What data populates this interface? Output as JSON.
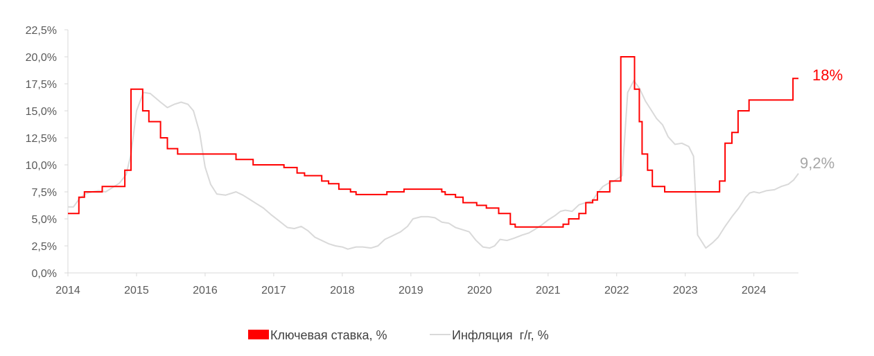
{
  "chart_data": {
    "type": "line",
    "title": "",
    "xlabel": "",
    "ylabel": "",
    "x_ticks": [
      "2014",
      "2015",
      "2016",
      "2017",
      "2018",
      "2019",
      "2020",
      "2021",
      "2022",
      "2023",
      "2024"
    ],
    "y_ticks": [
      "0,0%",
      "2,5%",
      "5,0%",
      "7,5%",
      "10,0%",
      "12,5%",
      "15,0%",
      "17,5%",
      "20,0%",
      "22,5%"
    ],
    "xlim": [
      2014.0,
      2024.65
    ],
    "ylim": [
      0,
      22.5
    ],
    "grid": false,
    "legend_position": "bottom",
    "colors": {
      "rate": "#ff0000",
      "inflation": "#d9d9d9",
      "axis": "#d9d9d9"
    },
    "series": [
      {
        "name": "Ключевая ставка, %",
        "style": "step",
        "points": [
          [
            2014.0,
            5.5
          ],
          [
            2014.16,
            7.0
          ],
          [
            2014.24,
            7.5
          ],
          [
            2014.5,
            8.0
          ],
          [
            2014.83,
            9.5
          ],
          [
            2014.92,
            17.0
          ],
          [
            2015.09,
            15.0
          ],
          [
            2015.18,
            14.0
          ],
          [
            2015.35,
            12.5
          ],
          [
            2015.45,
            11.5
          ],
          [
            2015.6,
            11.0
          ],
          [
            2016.45,
            10.5
          ],
          [
            2016.7,
            10.0
          ],
          [
            2017.15,
            9.75
          ],
          [
            2017.34,
            9.25
          ],
          [
            2017.45,
            9.0
          ],
          [
            2017.7,
            8.5
          ],
          [
            2017.8,
            8.25
          ],
          [
            2017.95,
            7.75
          ],
          [
            2018.12,
            7.5
          ],
          [
            2018.2,
            7.25
          ],
          [
            2018.65,
            7.5
          ],
          [
            2018.9,
            7.75
          ],
          [
            2019.45,
            7.5
          ],
          [
            2019.5,
            7.25
          ],
          [
            2019.65,
            7.0
          ],
          [
            2019.76,
            6.5
          ],
          [
            2019.96,
            6.25
          ],
          [
            2020.1,
            6.0
          ],
          [
            2020.28,
            5.5
          ],
          [
            2020.45,
            4.5
          ],
          [
            2020.52,
            4.25
          ],
          [
            2021.22,
            4.5
          ],
          [
            2021.3,
            5.0
          ],
          [
            2021.45,
            5.5
          ],
          [
            2021.55,
            6.5
          ],
          [
            2021.65,
            6.75
          ],
          [
            2021.72,
            7.5
          ],
          [
            2021.9,
            8.5
          ],
          [
            2021.98,
            8.5
          ],
          [
            2022.06,
            20.0
          ],
          [
            2022.26,
            17.0
          ],
          [
            2022.33,
            14.0
          ],
          [
            2022.37,
            11.0
          ],
          [
            2022.45,
            9.5
          ],
          [
            2022.52,
            8.0
          ],
          [
            2022.7,
            7.5
          ],
          [
            2023.5,
            8.5
          ],
          [
            2023.58,
            12.0
          ],
          [
            2023.68,
            13.0
          ],
          [
            2023.77,
            15.0
          ],
          [
            2023.93,
            16.0
          ],
          [
            2024.57,
            18.0
          ],
          [
            2024.65,
            18.0
          ]
        ],
        "end_label": "18%"
      },
      {
        "name": "Инфляция  г/г, %",
        "style": "line",
        "points": [
          [
            2014.0,
            6.1
          ],
          [
            2014.08,
            6.1
          ],
          [
            2014.16,
            6.8
          ],
          [
            2014.25,
            7.3
          ],
          [
            2014.35,
            7.5
          ],
          [
            2014.45,
            7.6
          ],
          [
            2014.55,
            7.5
          ],
          [
            2014.65,
            7.9
          ],
          [
            2014.75,
            8.3
          ],
          [
            2014.85,
            9.1
          ],
          [
            2014.92,
            11.0
          ],
          [
            2015.0,
            15.0
          ],
          [
            2015.1,
            16.7
          ],
          [
            2015.2,
            16.6
          ],
          [
            2015.35,
            15.8
          ],
          [
            2015.45,
            15.3
          ],
          [
            2015.55,
            15.6
          ],
          [
            2015.65,
            15.8
          ],
          [
            2015.75,
            15.6
          ],
          [
            2015.83,
            15.0
          ],
          [
            2015.92,
            13.0
          ],
          [
            2016.0,
            9.8
          ],
          [
            2016.08,
            8.2
          ],
          [
            2016.17,
            7.3
          ],
          [
            2016.3,
            7.2
          ],
          [
            2016.45,
            7.5
          ],
          [
            2016.55,
            7.2
          ],
          [
            2016.65,
            6.8
          ],
          [
            2016.75,
            6.4
          ],
          [
            2016.85,
            6.0
          ],
          [
            2016.96,
            5.4
          ],
          [
            2017.08,
            4.8
          ],
          [
            2017.2,
            4.2
          ],
          [
            2017.3,
            4.1
          ],
          [
            2017.4,
            4.3
          ],
          [
            2017.5,
            3.9
          ],
          [
            2017.6,
            3.3
          ],
          [
            2017.7,
            3.0
          ],
          [
            2017.8,
            2.7
          ],
          [
            2017.9,
            2.5
          ],
          [
            2018.0,
            2.4
          ],
          [
            2018.08,
            2.2
          ],
          [
            2018.2,
            2.4
          ],
          [
            2018.3,
            2.4
          ],
          [
            2018.42,
            2.3
          ],
          [
            2018.52,
            2.5
          ],
          [
            2018.62,
            3.1
          ],
          [
            2018.72,
            3.4
          ],
          [
            2018.85,
            3.8
          ],
          [
            2018.95,
            4.3
          ],
          [
            2019.03,
            5.0
          ],
          [
            2019.15,
            5.2
          ],
          [
            2019.25,
            5.2
          ],
          [
            2019.35,
            5.1
          ],
          [
            2019.45,
            4.7
          ],
          [
            2019.55,
            4.6
          ],
          [
            2019.65,
            4.2
          ],
          [
            2019.75,
            4.0
          ],
          [
            2019.85,
            3.8
          ],
          [
            2019.95,
            3.0
          ],
          [
            2020.05,
            2.4
          ],
          [
            2020.15,
            2.3
          ],
          [
            2020.22,
            2.5
          ],
          [
            2020.3,
            3.1
          ],
          [
            2020.4,
            3.0
          ],
          [
            2020.5,
            3.2
          ],
          [
            2020.62,
            3.5
          ],
          [
            2020.72,
            3.7
          ],
          [
            2020.8,
            4.0
          ],
          [
            2020.9,
            4.4
          ],
          [
            2021.0,
            4.9
          ],
          [
            2021.1,
            5.3
          ],
          [
            2021.18,
            5.7
          ],
          [
            2021.25,
            5.8
          ],
          [
            2021.35,
            5.7
          ],
          [
            2021.45,
            6.3
          ],
          [
            2021.55,
            6.5
          ],
          [
            2021.65,
            6.7
          ],
          [
            2021.72,
            7.4
          ],
          [
            2021.8,
            8.0
          ],
          [
            2021.88,
            8.3
          ],
          [
            2021.96,
            8.5
          ],
          [
            2022.08,
            9.0
          ],
          [
            2022.16,
            16.7
          ],
          [
            2022.25,
            17.8
          ],
          [
            2022.33,
            17.1
          ],
          [
            2022.42,
            15.9
          ],
          [
            2022.5,
            15.1
          ],
          [
            2022.58,
            14.3
          ],
          [
            2022.67,
            13.7
          ],
          [
            2022.75,
            12.6
          ],
          [
            2022.85,
            11.9
          ],
          [
            2022.95,
            12.0
          ],
          [
            2023.05,
            11.7
          ],
          [
            2023.12,
            10.8
          ],
          [
            2023.18,
            3.5
          ],
          [
            2023.3,
            2.3
          ],
          [
            2023.4,
            2.8
          ],
          [
            2023.48,
            3.3
          ],
          [
            2023.58,
            4.3
          ],
          [
            2023.68,
            5.2
          ],
          [
            2023.78,
            6.0
          ],
          [
            2023.88,
            7.0
          ],
          [
            2023.94,
            7.4
          ],
          [
            2024.0,
            7.5
          ],
          [
            2024.08,
            7.4
          ],
          [
            2024.18,
            7.6
          ],
          [
            2024.3,
            7.7
          ],
          [
            2024.4,
            8.0
          ],
          [
            2024.5,
            8.2
          ],
          [
            2024.58,
            8.6
          ],
          [
            2024.65,
            9.2
          ]
        ],
        "end_label": "9,2%"
      }
    ]
  }
}
